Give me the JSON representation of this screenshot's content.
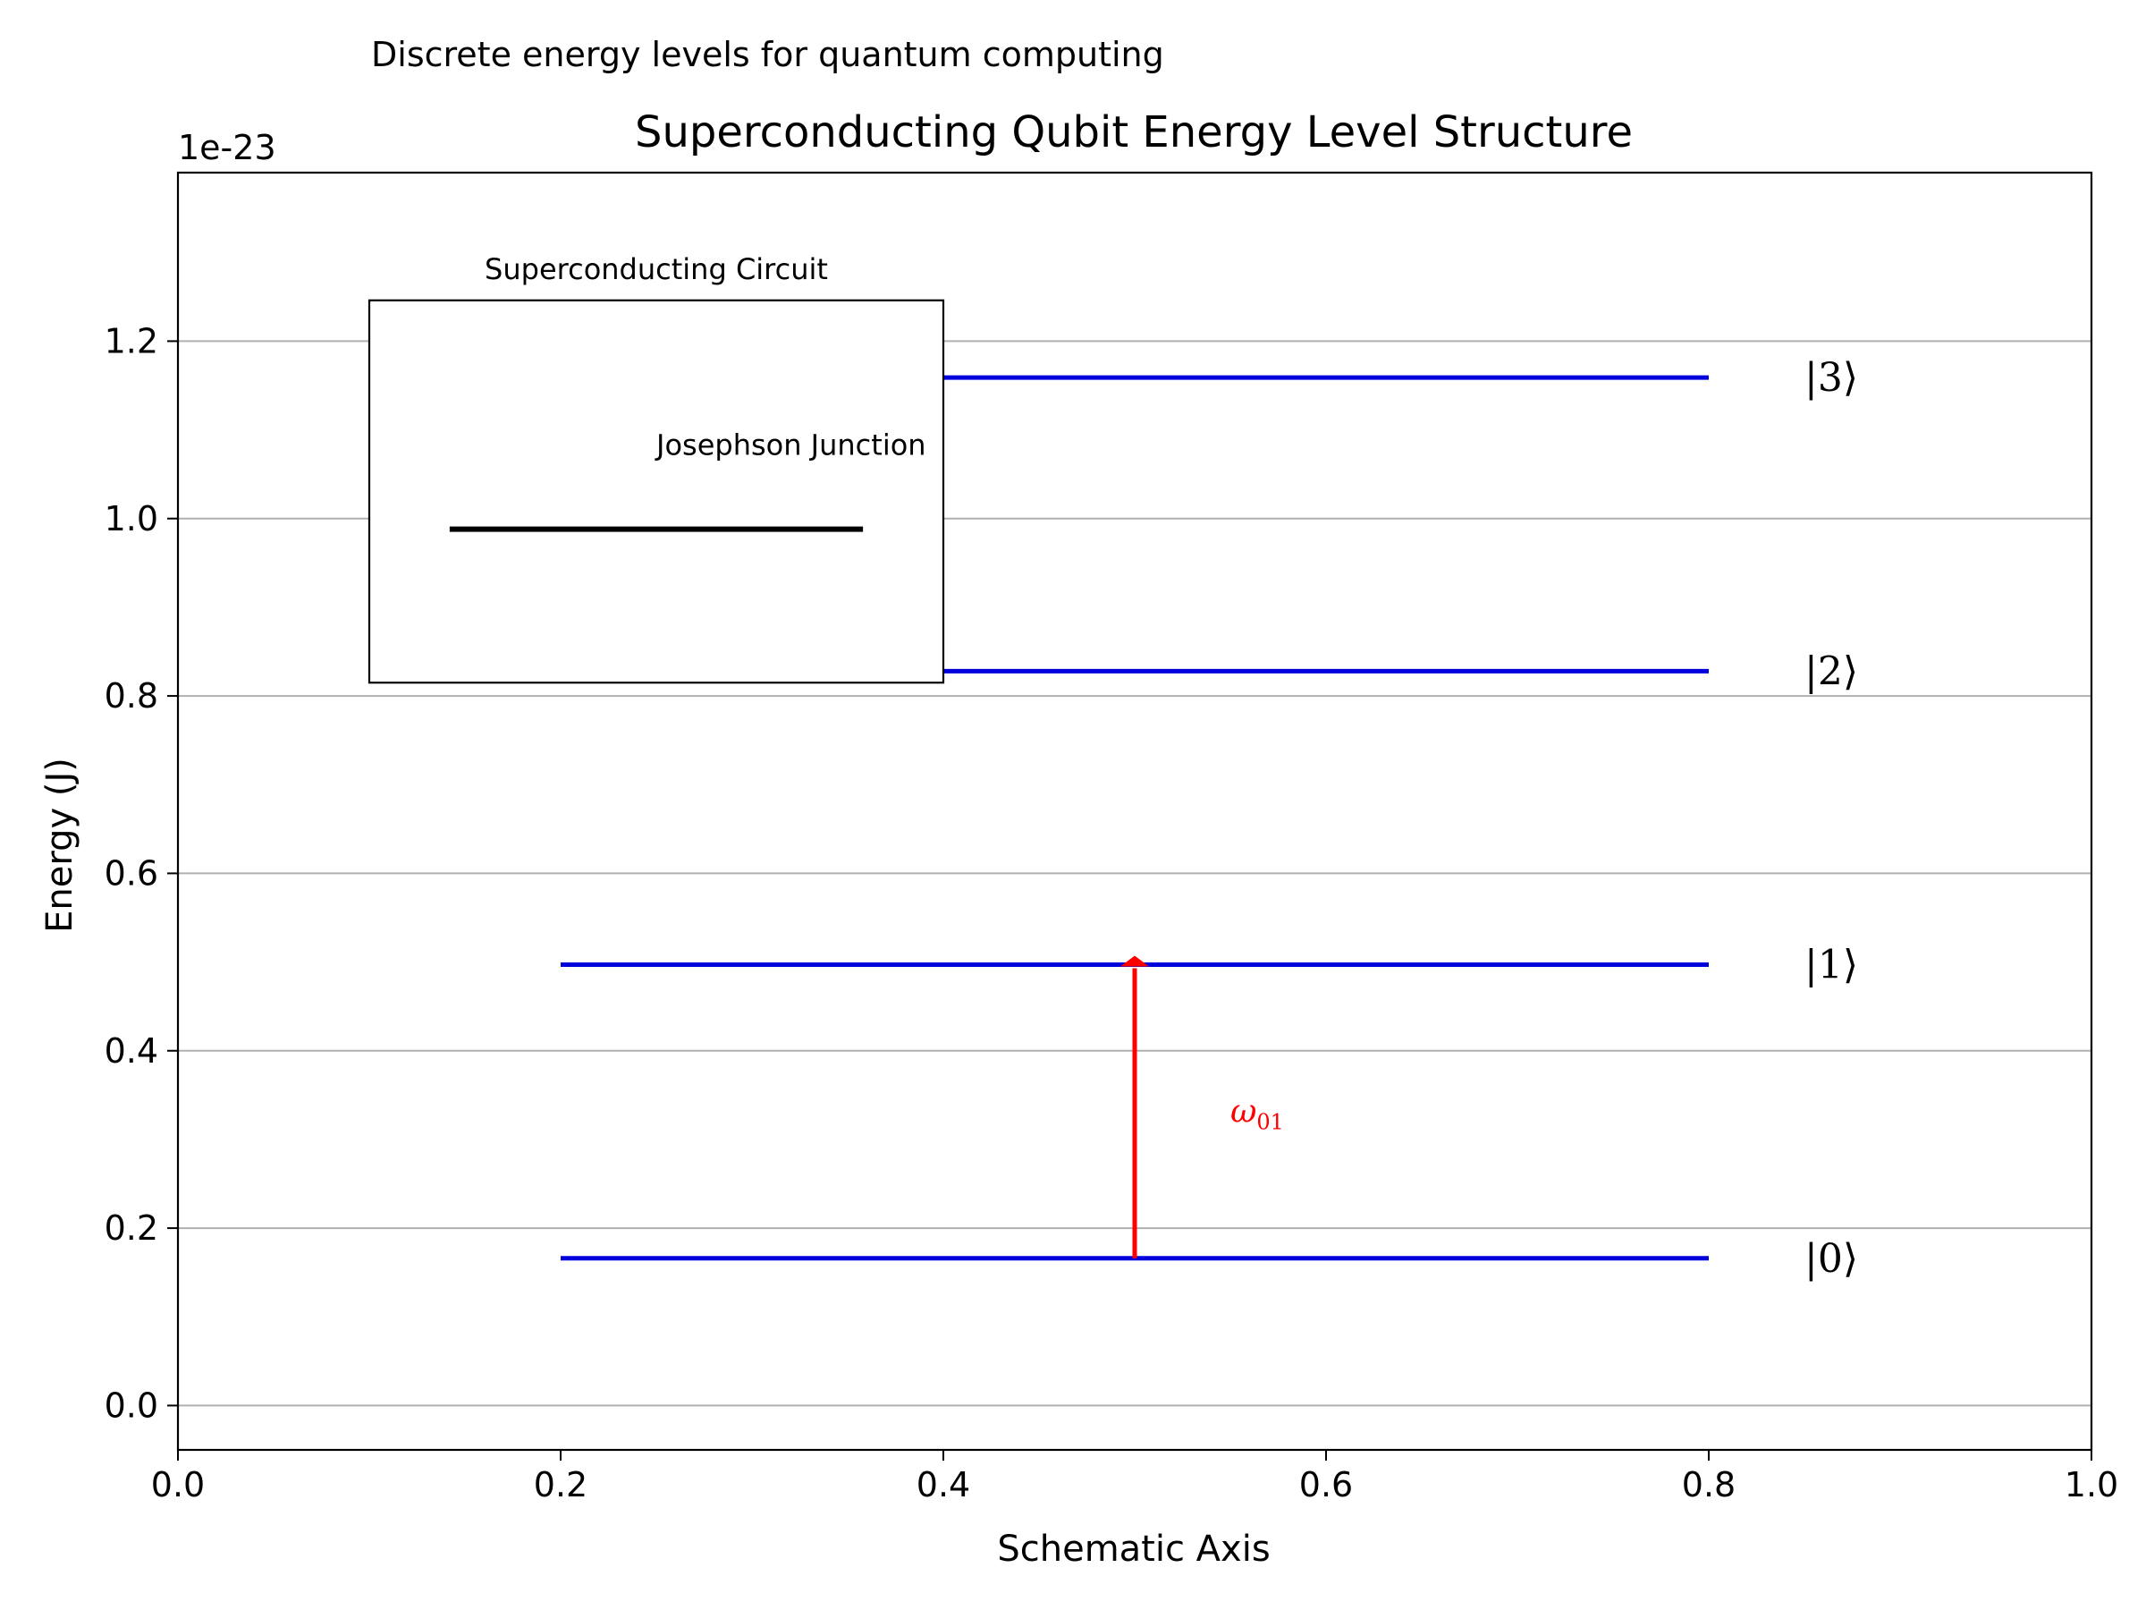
{
  "chart_data": {
    "type": "line",
    "suptitle": "Discrete energy levels for quantum computing",
    "title": "Superconducting Qubit Energy Level Structure",
    "xlabel": "Schematic Axis",
    "ylabel": "Energy (J)",
    "y_offset_label": "1e-23",
    "y_scale": 1e-23,
    "xlim": [
      0.0,
      1.0
    ],
    "ylim": [
      -0.05,
      1.39
    ],
    "xticks": [
      0.0,
      0.2,
      0.4,
      0.6,
      0.8,
      1.0
    ],
    "xtick_labels": [
      "0.0",
      "0.2",
      "0.4",
      "0.6",
      "0.8",
      "1.0"
    ],
    "yticks": [
      0.0,
      0.2,
      0.4,
      0.6,
      0.8,
      1.0,
      1.2
    ],
    "ytick_labels": [
      "0.0",
      "0.2",
      "0.4",
      "0.6",
      "0.8",
      "1.0",
      "1.2"
    ],
    "grid": "y",
    "colors": {
      "level": "#0000dd",
      "transition": "#ff0000",
      "grid": "#b0b0b0",
      "axes": "#000000"
    },
    "levels": [
      {
        "label": "|0⟩",
        "energy": 0.166,
        "x": [
          0.2,
          0.8
        ]
      },
      {
        "label": "|1⟩",
        "energy": 0.497,
        "x": [
          0.2,
          0.8
        ]
      },
      {
        "label": "|2⟩",
        "energy": 0.828,
        "x": [
          0.2,
          0.8
        ]
      },
      {
        "label": "|3⟩",
        "energy": 1.159,
        "x": [
          0.2,
          0.8
        ]
      }
    ],
    "transition": {
      "label": "ω",
      "label_sub": "01",
      "x": 0.5,
      "from": 0.166,
      "to": 0.497
    },
    "inset": {
      "title": "Superconducting Circuit",
      "junction_label": "Josephson Junction",
      "box_x": [
        0.1,
        0.4
      ],
      "box_y": [
        0.815,
        1.246
      ],
      "junction_x": [
        0.142,
        0.358
      ],
      "junction_y": 0.988
    }
  }
}
